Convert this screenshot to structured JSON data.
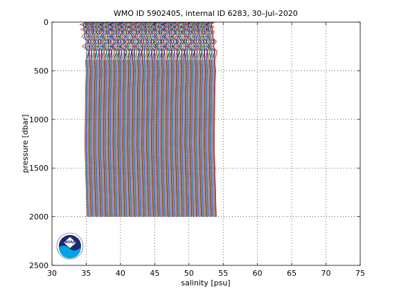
{
  "chart_data": {
    "type": "line",
    "title": "WMO ID 5902405, internal ID 6283, 30–Jul–2020",
    "xlabel": "salinity [psu]",
    "ylabel": "pressure [dbar]",
    "xlim": [
      30,
      75
    ],
    "ylim": [
      0,
      2500
    ],
    "y_reversed": true,
    "grid": true,
    "grid_style": "dotted",
    "x_ticks": [
      "30",
      "35",
      "40",
      "45",
      "50",
      "55",
      "60",
      "65",
      "70",
      "75"
    ],
    "y_ticks": [
      "0",
      "500",
      "1000",
      "1500",
      "2000",
      "2500"
    ],
    "profile_count": 190,
    "salinity_offset_per_profile": 0.1,
    "series_colors": [
      "#ff0000",
      "#00aa00",
      "#0000ff",
      "#00c0c0",
      "#cc00cc",
      "#999900",
      "#000000"
    ],
    "base_profile": {
      "pressure": [
        0,
        25,
        50,
        75,
        100,
        150,
        200,
        250,
        300,
        400,
        500,
        700,
        1000,
        1250,
        1500,
        1750,
        2000
      ],
      "salinity": [
        34.75,
        34.4,
        34.6,
        34.5,
        34.7,
        34.6,
        35.0,
        34.7,
        35.1,
        34.9,
        35.0,
        34.9,
        34.85,
        34.8,
        34.9,
        35.0,
        35.1
      ]
    }
  },
  "logo": {
    "text": "NOAA",
    "colors": {
      "ring": "#ffffff",
      "sky": "#1c2a6e",
      "sea": "#00a2e8"
    }
  }
}
